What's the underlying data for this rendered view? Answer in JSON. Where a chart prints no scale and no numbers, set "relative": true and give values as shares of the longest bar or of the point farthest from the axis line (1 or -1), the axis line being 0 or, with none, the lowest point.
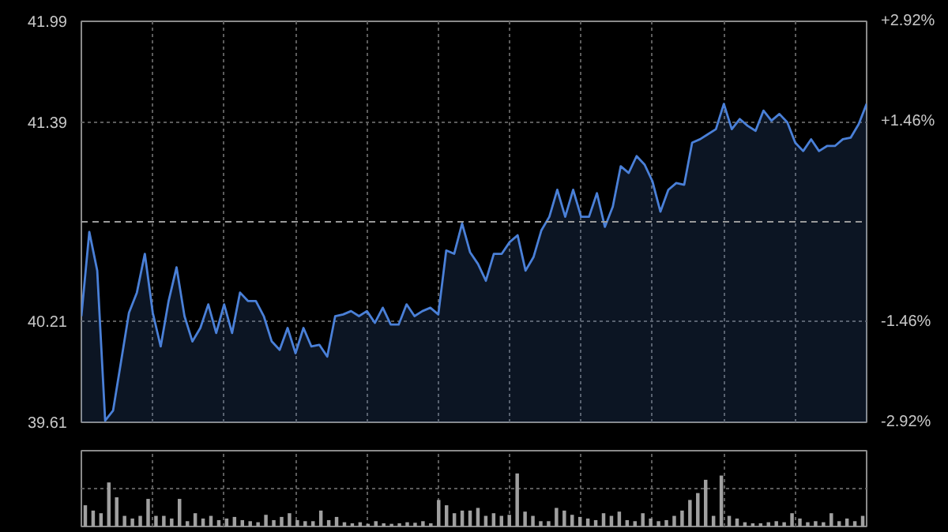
{
  "chart_data": [
    {
      "type": "area",
      "categories": [
        null,
        null,
        null,
        null,
        null,
        null,
        null,
        null,
        null,
        null,
        null,
        null,
        null,
        null,
        null,
        null,
        null,
        null,
        null,
        null,
        null,
        null,
        null,
        null,
        null,
        null,
        null,
        null,
        null,
        null,
        null,
        null,
        null,
        null,
        null,
        null,
        null,
        null,
        null,
        null,
        null,
        null,
        null,
        null,
        null,
        null,
        null,
        null,
        null,
        null,
        null,
        null,
        null,
        null,
        null,
        null,
        null,
        null,
        null,
        null,
        null,
        null,
        null,
        null,
        null,
        null,
        null,
        null,
        null,
        null,
        null,
        null,
        null,
        null,
        null,
        null,
        null,
        null,
        null,
        null,
        null,
        null,
        null,
        null,
        null,
        null,
        null,
        null,
        null,
        null,
        null,
        null,
        null,
        null,
        null,
        null,
        null,
        null,
        null,
        null
      ],
      "series": [
        {
          "color": "#4a80d8",
          "values": [
            40.24,
            40.74,
            40.51,
            39.62,
            39.68,
            39.97,
            40.26,
            40.38,
            40.61,
            40.26,
            40.06,
            40.33,
            40.53,
            40.24,
            40.09,
            40.17,
            40.31,
            40.14,
            40.31,
            40.14,
            40.38,
            40.33,
            40.33,
            40.24,
            40.09,
            40.04,
            40.17,
            40.02,
            40.17,
            40.06,
            40.07,
            40.0,
            40.24,
            40.25,
            40.27,
            40.24,
            40.27,
            40.2,
            40.29,
            40.19,
            40.19,
            40.31,
            40.24,
            40.27,
            40.29,
            40.25,
            40.63,
            40.61,
            40.79,
            40.62,
            40.55,
            40.45,
            40.61,
            40.61,
            40.68,
            40.72,
            40.51,
            40.59,
            40.75,
            40.83,
            40.99,
            40.83,
            40.99,
            40.83,
            40.83,
            40.97,
            40.77,
            40.89,
            41.13,
            41.09,
            41.19,
            41.14,
            41.04,
            40.86,
            40.99,
            41.03,
            41.02,
            41.27,
            41.29,
            41.32,
            41.35,
            41.5,
            41.35,
            41.41,
            41.37,
            41.34,
            41.46,
            41.4,
            41.44,
            41.39,
            41.27,
            41.22,
            41.29,
            41.22,
            41.25,
            41.25,
            41.29,
            41.3,
            41.38,
            41.5
          ]
        }
      ],
      "ylim": [
        39.61,
        41.99
      ],
      "yticks": [
        39.61,
        40.21,
        41.39,
        41.99
      ],
      "y2lim": [
        -2.92,
        2.92
      ],
      "y2ticks": [
        {
          "value": -2.92,
          "label": "-2.92%"
        },
        {
          "value": -1.46,
          "label": "-1.46%"
        },
        {
          "value": 1.46,
          "label": "+1.46%"
        },
        {
          "value": 2.92,
          "label": "+2.92%"
        }
      ],
      "ref_lines": [
        {
          "axis": "y",
          "value": 40.8,
          "color": "#9a9a9a",
          "line_style": "dashed"
        }
      ],
      "grid": true
    },
    {
      "type": "bar",
      "relative": true,
      "categories": [
        null,
        null,
        null,
        null,
        null,
        null,
        null,
        null,
        null,
        null,
        null,
        null,
        null,
        null,
        null,
        null,
        null,
        null,
        null,
        null,
        null,
        null,
        null,
        null,
        null,
        null,
        null,
        null,
        null,
        null,
        null,
        null,
        null,
        null,
        null,
        null,
        null,
        null,
        null,
        null,
        null,
        null,
        null,
        null,
        null,
        null,
        null,
        null,
        null,
        null,
        null,
        null,
        null,
        null,
        null,
        null,
        null,
        null,
        null,
        null,
        null,
        null,
        null,
        null,
        null,
        null,
        null,
        null,
        null,
        null,
        null,
        null,
        null,
        null,
        null,
        null,
        null,
        null,
        null,
        null,
        null,
        null,
        null,
        null,
        null,
        null,
        null,
        null,
        null,
        null,
        null,
        null,
        null,
        null,
        null,
        null,
        null,
        null,
        null,
        null
      ],
      "values": [
        0.4,
        0.3,
        0.25,
        0.83,
        0.55,
        0.2,
        0.15,
        0.2,
        0.52,
        0.2,
        0.2,
        0.15,
        0.52,
        0.1,
        0.25,
        0.15,
        0.2,
        0.12,
        0.15,
        0.18,
        0.12,
        0.1,
        0.08,
        0.22,
        0.12,
        0.18,
        0.25,
        0.12,
        0.1,
        0.1,
        0.3,
        0.12,
        0.18,
        0.08,
        0.06,
        0.08,
        0.05,
        0.1,
        0.06,
        0.05,
        0.06,
        0.08,
        0.07,
        0.1,
        0.06,
        0.5,
        0.4,
        0.25,
        0.3,
        0.3,
        0.35,
        0.2,
        0.25,
        0.2,
        0.22,
        1.0,
        0.28,
        0.2,
        0.1,
        0.1,
        0.35,
        0.3,
        0.22,
        0.18,
        0.15,
        0.12,
        0.25,
        0.2,
        0.28,
        0.12,
        0.1,
        0.25,
        0.15,
        0.1,
        0.12,
        0.2,
        0.3,
        0.5,
        0.63,
        0.88,
        0.2,
        0.96,
        0.2,
        0.15,
        0.08,
        0.06,
        0.06,
        0.08,
        0.1,
        0.08,
        0.25,
        0.15,
        0.08,
        0.1,
        0.08,
        0.25,
        0.1,
        0.15,
        0.1,
        0.2
      ],
      "color": "#a0a0a0",
      "grid": true
    }
  ]
}
